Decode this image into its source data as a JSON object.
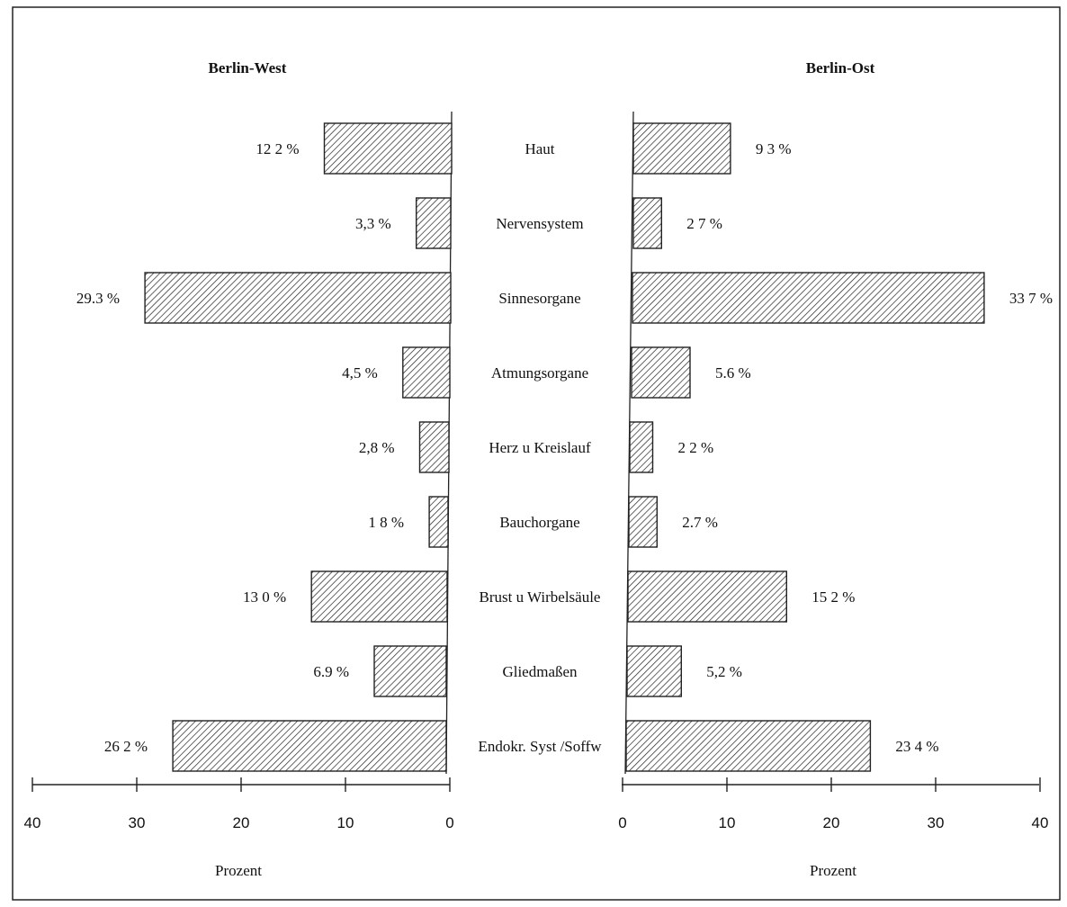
{
  "chart_data": {
    "type": "bar",
    "orientation": "horizontal-butterfly",
    "categories": [
      "Haut",
      "Nervensystem",
      "Sinnesorgane",
      "Atmungsorgane",
      "Herz u  Kreislauf",
      "Bauchorgane",
      "Brust u  Wirbelsäule",
      "Gliedmaßen",
      "Endokr. Syst /Soffw"
    ],
    "panels": [
      {
        "title": "Berlin-West",
        "side": "left",
        "values": [
          12.2,
          3.3,
          29.3,
          4.5,
          2.8,
          1.8,
          13.0,
          6.9,
          26.2
        ],
        "value_labels": [
          "12 2 %",
          "3,3 %",
          "29.3 %",
          "4,5 %",
          "2,8 %",
          "1 8 %",
          "13 0 %",
          "6.9 %",
          "26 2 %"
        ],
        "xlabel": "Prozent",
        "xlim": [
          0,
          40
        ],
        "ticks": [
          "40",
          "30",
          "20",
          "10",
          "0"
        ]
      },
      {
        "title": "Berlin-Ost",
        "side": "right",
        "values": [
          9.3,
          2.7,
          33.7,
          5.6,
          2.2,
          2.7,
          15.2,
          5.2,
          23.4
        ],
        "value_labels": [
          "9 3 %",
          "2 7 %",
          "33 7 %",
          "5.6 %",
          "2 2 %",
          "2.7 %",
          "15 2 %",
          "5,2 %",
          "23 4 %"
        ],
        "xlabel": "Prozent",
        "xlim": [
          0,
          40
        ],
        "ticks": [
          "0",
          "10",
          "20",
          "30",
          "40"
        ]
      }
    ],
    "bar_fill": "hatched",
    "bar_color": "#222222",
    "grid": false,
    "legend": "none"
  }
}
